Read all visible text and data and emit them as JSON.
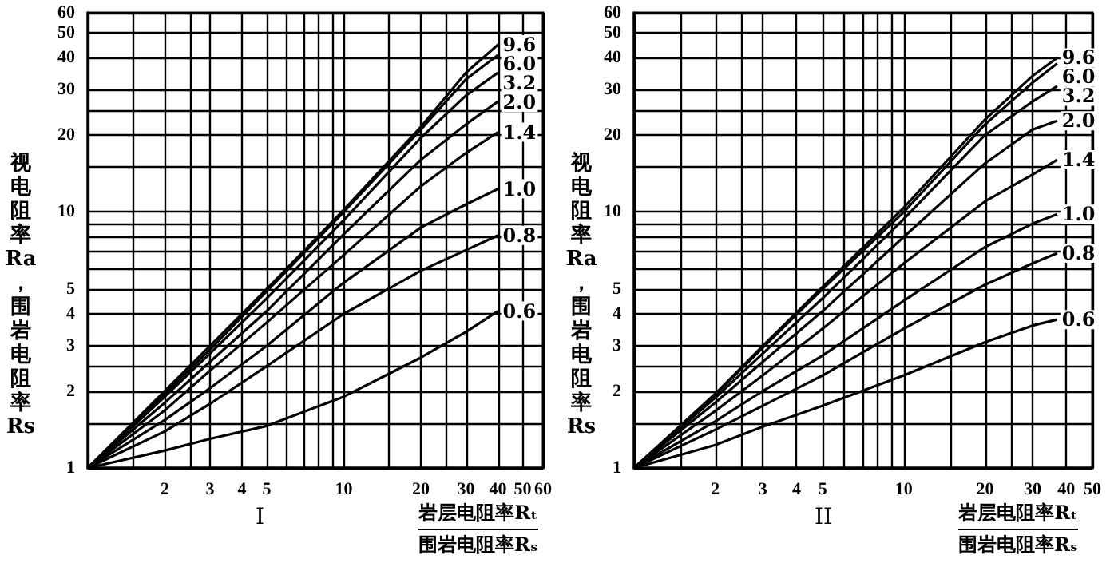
{
  "chart_data": [
    {
      "type": "line",
      "title": "I",
      "xlabel": "岩层电阻率Rₜ\n围岩电阻率Rₛ",
      "ylabel": "视电阻率Ra，围岩电阻率Rs",
      "log": "xy",
      "grid": true,
      "marker": "none",
      "xlim": [
        1,
        60
      ],
      "ylim": [
        1,
        60
      ],
      "xticks": [
        {
          "value": 1,
          "label": null
        },
        {
          "value": 1.5,
          "label": null
        },
        2,
        {
          "value": 2.5,
          "label": null
        },
        3,
        4,
        5,
        {
          "value": 6,
          "label": null
        },
        {
          "value": 7,
          "label": null
        },
        {
          "value": 8,
          "label": null
        },
        {
          "value": 9,
          "label": null
        },
        10,
        {
          "value": 15,
          "label": null
        },
        20,
        {
          "value": 25,
          "label": null
        },
        30,
        40,
        50,
        60
      ],
      "yticks": [
        1,
        {
          "value": 1.5,
          "label": null
        },
        2,
        {
          "value": 2.5,
          "label": null
        },
        3,
        4,
        5,
        {
          "value": 6,
          "label": null
        },
        {
          "value": 7,
          "label": null
        },
        {
          "value": 8,
          "label": null
        },
        {
          "value": 9,
          "label": null
        },
        10,
        {
          "value": 15,
          "label": null
        },
        20,
        {
          "value": 25,
          "label": null
        },
        30,
        40,
        50,
        60
      ],
      "x": [
        1,
        2,
        3,
        5,
        10,
        20,
        30,
        40
      ],
      "series": [
        {
          "name": "9.6",
          "color": "#000000",
          "values": [
            1,
            2.0,
            3.0,
            5.0,
            10.2,
            21.5,
            35,
            45
          ]
        },
        {
          "name": "6.0",
          "color": "#000000",
          "values": [
            1,
            1.95,
            2.9,
            4.9,
            10,
            21,
            33,
            41
          ]
        },
        {
          "name": "3.2",
          "color": "#000000",
          "values": [
            1,
            1.9,
            2.8,
            4.6,
            9.3,
            19.5,
            28.5,
            35
          ]
        },
        {
          "name": "2.0",
          "color": "#000000",
          "values": [
            1,
            1.8,
            2.6,
            4.1,
            8.2,
            16,
            22,
            27
          ]
        },
        {
          "name": "1.4",
          "color": "#000000",
          "values": [
            1,
            1.68,
            2.4,
            3.7,
            6.8,
            12.6,
            17,
            20.5
          ]
        },
        {
          "name": "1.0",
          "color": "#000000",
          "values": [
            1,
            1.54,
            2.05,
            3.0,
            5.3,
            8.7,
            10.7,
            12.3
          ]
        },
        {
          "name": "0.8",
          "color": "#000000",
          "values": [
            1,
            1.39,
            1.78,
            2.5,
            4.0,
            5.9,
            7.1,
            8.1
          ]
        },
        {
          "name": "0.6",
          "color": "#000000",
          "values": [
            1,
            1.17,
            1.3,
            1.46,
            1.9,
            2.7,
            3.4,
            4.1
          ]
        }
      ]
    },
    {
      "type": "line",
      "title": "II",
      "xlabel": "岩层电阻率Rₜ\n围岩电阻率Rₛ",
      "ylabel": "视电阻率Ra，围岩电阻率Rs",
      "log": "xy",
      "grid": true,
      "marker": "none",
      "xlim": [
        1,
        50
      ],
      "ylim": [
        1,
        60
      ],
      "xticks": [
        {
          "value": 1,
          "label": null
        },
        {
          "value": 1.5,
          "label": null
        },
        2,
        {
          "value": 2.5,
          "label": null
        },
        3,
        4,
        5,
        {
          "value": 6,
          "label": null
        },
        {
          "value": 7,
          "label": null
        },
        {
          "value": 8,
          "label": null
        },
        {
          "value": 9,
          "label": null
        },
        10,
        {
          "value": 15,
          "label": null
        },
        20,
        {
          "value": 25,
          "label": null
        },
        30,
        40,
        50
      ],
      "yticks": [
        1,
        {
          "value": 1.5,
          "label": null
        },
        2,
        {
          "value": 2.5,
          "label": null
        },
        3,
        4,
        5,
        {
          "value": 6,
          "label": null
        },
        {
          "value": 7,
          "label": null
        },
        {
          "value": 8,
          "label": null
        },
        {
          "value": 9,
          "label": null
        },
        10,
        {
          "value": 15,
          "label": null
        },
        20,
        {
          "value": 25,
          "label": null
        },
        30,
        40,
        50,
        60
      ],
      "x": [
        1,
        2,
        3,
        5,
        10,
        20,
        30,
        37
      ],
      "series": [
        {
          "name": "9.6",
          "color": "#000000",
          "values": [
            1,
            1.95,
            3.0,
            5.1,
            10.4,
            23,
            34,
            40
          ]
        },
        {
          "name": "6.0",
          "color": "#000000",
          "values": [
            1,
            1.93,
            2.95,
            5.0,
            10,
            22,
            32,
            38
          ]
        },
        {
          "name": "3.2",
          "color": "#000000",
          "values": [
            1,
            1.88,
            2.8,
            4.6,
            9.4,
            20,
            27,
            31
          ]
        },
        {
          "name": "2.0",
          "color": "#000000",
          "values": [
            1,
            1.8,
            2.6,
            4.1,
            8,
            15.5,
            21,
            22.7
          ]
        },
        {
          "name": "1.4",
          "color": "#000000",
          "values": [
            1,
            1.67,
            2.3,
            3.5,
            6.3,
            11,
            14,
            16
          ]
        },
        {
          "name": "1.0",
          "color": "#000000",
          "values": [
            1,
            1.52,
            2.0,
            2.75,
            4.5,
            7.3,
            9,
            9.8
          ]
        },
        {
          "name": "0.8",
          "color": "#000000",
          "values": [
            1,
            1.41,
            1.75,
            2.3,
            3.5,
            5.2,
            6.3,
            6.9
          ]
        },
        {
          "name": "0.6",
          "color": "#000000",
          "values": [
            1,
            1.23,
            1.45,
            1.75,
            2.3,
            3.1,
            3.6,
            3.8
          ]
        }
      ]
    }
  ]
}
